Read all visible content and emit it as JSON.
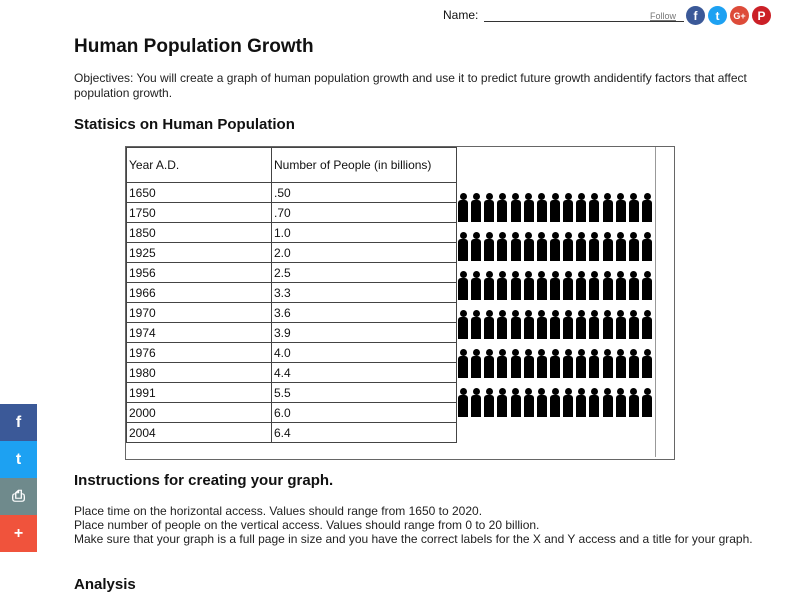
{
  "header": {
    "name_label": "Name:",
    "follow_label": "Follow",
    "social_icons": [
      {
        "name": "facebook",
        "glyph": "f",
        "color": "#3b5998"
      },
      {
        "name": "twitter",
        "glyph": "t",
        "color": "#1da1f2"
      },
      {
        "name": "google-plus",
        "glyph": "G+",
        "color": "#dd4b39"
      },
      {
        "name": "pinterest",
        "glyph": "P",
        "color": "#cb2027"
      }
    ]
  },
  "page": {
    "title": "Human Population Growth",
    "objectives": "Objectives: You will create a graph of human population growth and use it to predict future growth andidentify factors that affect population growth.",
    "stats_heading": "Statisics on Human Population",
    "instructions_heading": "Instructions for creating your graph.",
    "instructions": [
      "Place time on the horizontal access. Values should range from 1650 to 2020.",
      "Place number of people on the vertical access. Values should range from 0 to 20 billion.",
      "Make sure that your graph is a full page in size and you have the correct labels for the X and Y access and a title for your graph."
    ],
    "analysis_heading": "Analysis"
  },
  "table": {
    "headers": [
      "Year A.D.",
      "Number of People (in billions)"
    ],
    "rows": [
      [
        "1650",
        ".50"
      ],
      [
        "1750",
        ".70"
      ],
      [
        "1850",
        "1.0"
      ],
      [
        "1925",
        "2.0"
      ],
      [
        "1956",
        "2.5"
      ],
      [
        "1966",
        "3.3"
      ],
      [
        "1970",
        "3.6"
      ],
      [
        "1974",
        "3.9"
      ],
      [
        "1976",
        "4.0"
      ],
      [
        "1980",
        "4.4"
      ],
      [
        "1991",
        "5.5"
      ],
      [
        "2000",
        "6.0"
      ],
      [
        "2004",
        "6.4"
      ]
    ]
  },
  "image": {
    "description": "crowd-of-people-silhouettes"
  },
  "side_share": [
    {
      "name": "facebook",
      "glyph": "f",
      "color": "#3b5998"
    },
    {
      "name": "twitter",
      "glyph": "t",
      "color": "#1da1f2"
    },
    {
      "name": "print",
      "glyph": "⎙",
      "color": "#6f8a8c"
    },
    {
      "name": "more",
      "glyph": "+",
      "color": "#f0533c"
    }
  ]
}
